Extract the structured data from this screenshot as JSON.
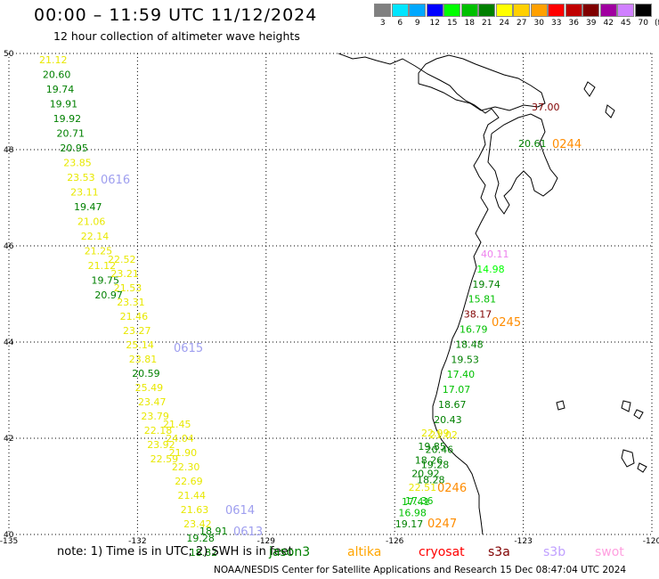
{
  "title": "00:00 – 11:59 UTC 11/12/2024",
  "subtitle": "12 hour collection of altimeter wave heights",
  "colorbar": {
    "unit": "(ft)",
    "entries": [
      {
        "label": "3",
        "color": "#808080"
      },
      {
        "label": "6",
        "color": "#00e5ff"
      },
      {
        "label": "9",
        "color": "#00a8ff"
      },
      {
        "label": "12",
        "color": "#0000ff"
      },
      {
        "label": "15",
        "color": "#00ff00"
      },
      {
        "label": "18",
        "color": "#00c000"
      },
      {
        "label": "21",
        "color": "#008000"
      },
      {
        "label": "24",
        "color": "#ffff00"
      },
      {
        "label": "27",
        "color": "#ffd000"
      },
      {
        "label": "30",
        "color": "#ffa000"
      },
      {
        "label": "33",
        "color": "#ff0000"
      },
      {
        "label": "36",
        "color": "#c00000"
      },
      {
        "label": "39",
        "color": "#800000"
      },
      {
        "label": "42",
        "color": "#a000a0"
      },
      {
        "label": "45",
        "color": "#d080ff"
      },
      {
        "label": "70",
        "color": "#000000"
      }
    ]
  },
  "map": {
    "lon_ticks": [
      "-135",
      "-132",
      "-129",
      "-126",
      "-123",
      "-120"
    ],
    "lat_ticks": [
      "50",
      "48",
      "46",
      "44",
      "42",
      "40"
    ],
    "lon_range": [
      -135,
      -120
    ],
    "lat_range": [
      40,
      50
    ]
  },
  "passes": [
    {
      "label": "0616",
      "label_color": "#9e9eef",
      "obs": [
        {
          "v": "21.12",
          "c": "#e8e800"
        },
        {
          "v": "20.60",
          "c": "#008000"
        },
        {
          "v": "19.74",
          "c": "#008000"
        },
        {
          "v": "19.91",
          "c": "#008000"
        },
        {
          "v": "19.92",
          "c": "#008000"
        },
        {
          "v": "20.71",
          "c": "#008000"
        },
        {
          "v": "20.95",
          "c": "#008000"
        },
        {
          "v": "23.85",
          "c": "#e8e800"
        },
        {
          "v": "23.53",
          "c": "#e8e800"
        },
        {
          "v": "23.11",
          "c": "#e8e800"
        },
        {
          "v": "19.47",
          "c": "#008000"
        },
        {
          "v": "21.06",
          "c": "#e8e800"
        },
        {
          "v": "22.14",
          "c": "#e8e800"
        },
        {
          "v": "21.25",
          "c": "#e8e800"
        },
        {
          "v": "21.12",
          "c": "#e8e800"
        },
        {
          "v": "19.75",
          "c": "#008000"
        },
        {
          "v": "20.97",
          "c": "#008000"
        }
      ]
    },
    {
      "label": "0615",
      "label_color": "#9e9eef",
      "obs": [
        {
          "v": "22.52",
          "c": "#e8e800"
        },
        {
          "v": "23.21",
          "c": "#e8e800"
        },
        {
          "v": "21.53",
          "c": "#e8e800"
        },
        {
          "v": "23.31",
          "c": "#e8e800"
        },
        {
          "v": "21.46",
          "c": "#e8e800"
        },
        {
          "v": "23.27",
          "c": "#e8e800"
        },
        {
          "v": "25.14",
          "c": "#e8e800"
        },
        {
          "v": "23.81",
          "c": "#e8e800"
        },
        {
          "v": "20.59",
          "c": "#008000"
        },
        {
          "v": "25.49",
          "c": "#e8e800"
        },
        {
          "v": "23.47",
          "c": "#e8e800"
        },
        {
          "v": "23.79",
          "c": "#e8e800"
        },
        {
          "v": "22.18",
          "c": "#e8e800"
        },
        {
          "v": "23.92",
          "c": "#e8e800"
        },
        {
          "v": "22.59",
          "c": "#e8e800"
        }
      ]
    },
    {
      "label": "0614",
      "label_color": "#9e9eef",
      "obs": [
        {
          "v": "21.45",
          "c": "#e8e800"
        },
        {
          "v": "24.04",
          "c": "#e8e800"
        },
        {
          "v": "21.90",
          "c": "#e8e800"
        },
        {
          "v": "22.30",
          "c": "#e8e800"
        },
        {
          "v": "22.69",
          "c": "#e8e800"
        },
        {
          "v": "21.44",
          "c": "#e8e800"
        },
        {
          "v": "21.63",
          "c": "#e8e800"
        },
        {
          "v": "23.42",
          "c": "#e8e800"
        },
        {
          "v": "19.28",
          "c": "#008000"
        },
        {
          "v": "18.82",
          "c": "#008000"
        }
      ]
    },
    {
      "label": "0613",
      "label_color": "#9e9eef",
      "obs": [
        {
          "v": "18.91",
          "c": "#008000"
        }
      ]
    },
    {
      "label": "0244",
      "label_color": "#ff8c00",
      "obs": [
        {
          "v": "37.00",
          "c": "#800000"
        },
        {
          "v": "20.61",
          "c": "#008000"
        }
      ]
    },
    {
      "label": "0245",
      "label_color": "#ff8c00",
      "obs": [
        {
          "v": "40.11",
          "c": "#ee82ee"
        },
        {
          "v": "14.98",
          "c": "#00ff00"
        },
        {
          "v": "19.74",
          "c": "#008000"
        },
        {
          "v": "15.81",
          "c": "#00c000"
        },
        {
          "v": "38.17",
          "c": "#800000"
        },
        {
          "v": "16.79",
          "c": "#00c000"
        },
        {
          "v": "18.48",
          "c": "#008000"
        },
        {
          "v": "19.53",
          "c": "#008000"
        },
        {
          "v": "17.40",
          "c": "#00c000"
        },
        {
          "v": "17.07",
          "c": "#00c000"
        },
        {
          "v": "18.67",
          "c": "#008000"
        },
        {
          "v": "20.43",
          "c": "#008000"
        },
        {
          "v": "21.02",
          "c": "#e8e800"
        },
        {
          "v": "20.46",
          "c": "#008000"
        },
        {
          "v": "19.28",
          "c": "#008000"
        },
        {
          "v": "18.28",
          "c": "#008000"
        }
      ]
    },
    {
      "label": "0246",
      "label_color": "#ff8c00",
      "obs": [
        {
          "v": "22.99",
          "c": "#e8e800"
        },
        {
          "v": "19.85",
          "c": "#008000"
        },
        {
          "v": "18.26",
          "c": "#008000"
        },
        {
          "v": "20.92",
          "c": "#008000"
        },
        {
          "v": "22.51",
          "c": "#e8e800"
        },
        {
          "v": "17.36",
          "c": "#00c000"
        }
      ]
    },
    {
      "label": "0247",
      "label_color": "#ff8c00",
      "obs": [
        {
          "v": "17.41",
          "c": "#00c000"
        },
        {
          "v": "16.98",
          "c": "#00c000"
        },
        {
          "v": "19.17",
          "c": "#008000"
        }
      ]
    }
  ],
  "footer": {
    "note": "note:  1) Time is in UTC;  2) SWH is in feet",
    "satellites": [
      {
        "name": "jason3",
        "color": "#008000"
      },
      {
        "name": "altika",
        "color": "#ffa500"
      },
      {
        "name": "cryosat",
        "color": "#ff0000"
      },
      {
        "name": "s3a",
        "color": "#800000"
      },
      {
        "name": "s3b",
        "color": "#c0a0ff"
      },
      {
        "name": "swot",
        "color": "#ffa0e0"
      }
    ],
    "credit": "NOAA/NESDIS Center for Satellite Applications and Research    15 Dec 08:47:04 UTC 2024"
  }
}
